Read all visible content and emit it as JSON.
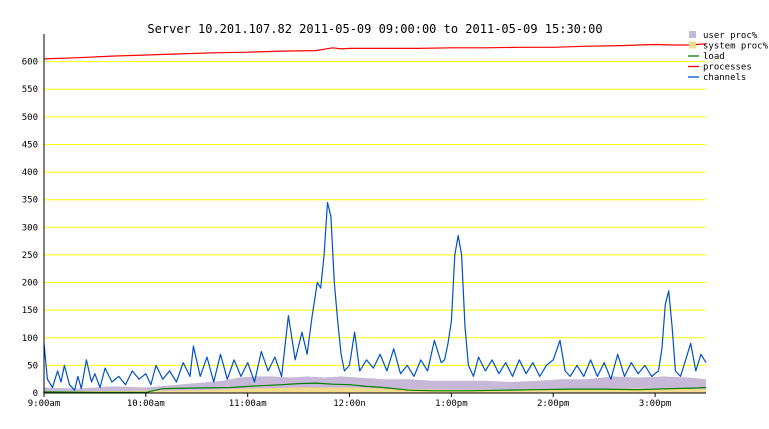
{
  "chart_data": {
    "type": "line",
    "title": "Server 10.201.107.82   2011-05-09 09:00:00 to 2011-05-09 15:30:00",
    "xlabel": "",
    "ylabel": "",
    "x_ticks": [
      {
        "label": "9:00am",
        "t": 0
      },
      {
        "label": "10:00am",
        "t": 60
      },
      {
        "label": "11:00am",
        "t": 120
      },
      {
        "label": "12:00n",
        "t": 180
      },
      {
        "label": "1:00pm",
        "t": 240
      },
      {
        "label": "2:00pm",
        "t": 300
      },
      {
        "label": "3:00pm",
        "t": 360
      }
    ],
    "xlim_minutes": [
      0,
      390
    ],
    "ylim": [
      0,
      650
    ],
    "y_ticks": [
      0,
      50,
      100,
      150,
      200,
      250,
      300,
      350,
      400,
      450,
      500,
      550,
      600
    ],
    "grid": true,
    "legend_position": "top-right",
    "series": [
      {
        "name": "user proc%",
        "style": "area",
        "color": "#c8b8d8",
        "points": [
          [
            0,
            10
          ],
          [
            20,
            8
          ],
          [
            40,
            12
          ],
          [
            60,
            10
          ],
          [
            75,
            14
          ],
          [
            90,
            18
          ],
          [
            105,
            22
          ],
          [
            115,
            28
          ],
          [
            125,
            30
          ],
          [
            135,
            30
          ],
          [
            145,
            28
          ],
          [
            155,
            30
          ],
          [
            165,
            28
          ],
          [
            175,
            30
          ],
          [
            185,
            28
          ],
          [
            200,
            25
          ],
          [
            215,
            25
          ],
          [
            230,
            22
          ],
          [
            245,
            22
          ],
          [
            260,
            22
          ],
          [
            275,
            20
          ],
          [
            290,
            22
          ],
          [
            305,
            25
          ],
          [
            320,
            25
          ],
          [
            335,
            30
          ],
          [
            350,
            28
          ],
          [
            365,
            30
          ],
          [
            380,
            28
          ],
          [
            390,
            25
          ]
        ]
      },
      {
        "name": "system proc%",
        "style": "area",
        "color": "#f5dc8c",
        "points": [
          [
            0,
            3
          ],
          [
            60,
            4
          ],
          [
            90,
            5
          ],
          [
            120,
            8
          ],
          [
            150,
            10
          ],
          [
            180,
            10
          ],
          [
            210,
            7
          ],
          [
            240,
            6
          ],
          [
            270,
            6
          ],
          [
            300,
            7
          ],
          [
            330,
            8
          ],
          [
            360,
            8
          ],
          [
            390,
            7
          ]
        ]
      },
      {
        "name": "load",
        "style": "line",
        "color": "#008000",
        "points": [
          [
            0,
            2
          ],
          [
            30,
            1
          ],
          [
            60,
            1
          ],
          [
            70,
            8
          ],
          [
            90,
            9
          ],
          [
            110,
            10
          ],
          [
            120,
            12
          ],
          [
            140,
            15
          ],
          [
            150,
            17
          ],
          [
            160,
            18
          ],
          [
            170,
            16
          ],
          [
            180,
            15
          ],
          [
            190,
            12
          ],
          [
            200,
            10
          ],
          [
            215,
            5
          ],
          [
            230,
            4
          ],
          [
            250,
            4
          ],
          [
            270,
            5
          ],
          [
            290,
            6
          ],
          [
            310,
            7
          ],
          [
            330,
            7
          ],
          [
            350,
            6
          ],
          [
            370,
            8
          ],
          [
            385,
            9
          ],
          [
            390,
            10
          ]
        ]
      },
      {
        "name": "processes",
        "style": "line",
        "color": "#ff0000",
        "points": [
          [
            0,
            605
          ],
          [
            20,
            607
          ],
          [
            40,
            610
          ],
          [
            60,
            612
          ],
          [
            80,
            614
          ],
          [
            100,
            616
          ],
          [
            120,
            617
          ],
          [
            140,
            619
          ],
          [
            160,
            620
          ],
          [
            170,
            625
          ],
          [
            175,
            623
          ],
          [
            180,
            624
          ],
          [
            200,
            624
          ],
          [
            220,
            624
          ],
          [
            240,
            625
          ],
          [
            260,
            625
          ],
          [
            280,
            626
          ],
          [
            300,
            626
          ],
          [
            320,
            628
          ],
          [
            340,
            629
          ],
          [
            360,
            631
          ],
          [
            370,
            630
          ],
          [
            380,
            630
          ],
          [
            390,
            632
          ]
        ]
      },
      {
        "name": "channels",
        "style": "line",
        "color": "#0050c8",
        "points": [
          [
            0,
            90
          ],
          [
            2,
            25
          ],
          [
            5,
            10
          ],
          [
            8,
            40
          ],
          [
            10,
            20
          ],
          [
            12,
            50
          ],
          [
            15,
            15
          ],
          [
            18,
            5
          ],
          [
            20,
            30
          ],
          [
            22,
            8
          ],
          [
            25,
            60
          ],
          [
            28,
            20
          ],
          [
            30,
            35
          ],
          [
            33,
            10
          ],
          [
            36,
            45
          ],
          [
            40,
            20
          ],
          [
            44,
            30
          ],
          [
            48,
            15
          ],
          [
            52,
            40
          ],
          [
            56,
            25
          ],
          [
            60,
            35
          ],
          [
            63,
            15
          ],
          [
            66,
            50
          ],
          [
            70,
            25
          ],
          [
            74,
            40
          ],
          [
            78,
            20
          ],
          [
            82,
            55
          ],
          [
            86,
            30
          ],
          [
            88,
            85
          ],
          [
            92,
            30
          ],
          [
            96,
            65
          ],
          [
            100,
            20
          ],
          [
            104,
            70
          ],
          [
            108,
            25
          ],
          [
            112,
            60
          ],
          [
            116,
            30
          ],
          [
            120,
            55
          ],
          [
            124,
            20
          ],
          [
            128,
            75
          ],
          [
            132,
            40
          ],
          [
            136,
            65
          ],
          [
            140,
            30
          ],
          [
            144,
            140
          ],
          [
            148,
            60
          ],
          [
            152,
            110
          ],
          [
            155,
            70
          ],
          [
            158,
            140
          ],
          [
            161,
            200
          ],
          [
            163,
            190
          ],
          [
            165,
            250
          ],
          [
            167,
            345
          ],
          [
            169,
            320
          ],
          [
            171,
            200
          ],
          [
            173,
            130
          ],
          [
            175,
            70
          ],
          [
            177,
            40
          ],
          [
            180,
            50
          ],
          [
            183,
            110
          ],
          [
            186,
            40
          ],
          [
            190,
            60
          ],
          [
            194,
            45
          ],
          [
            198,
            70
          ],
          [
            202,
            40
          ],
          [
            206,
            80
          ],
          [
            210,
            35
          ],
          [
            214,
            50
          ],
          [
            218,
            30
          ],
          [
            222,
            60
          ],
          [
            226,
            40
          ],
          [
            230,
            95
          ],
          [
            234,
            55
          ],
          [
            236,
            60
          ],
          [
            238,
            90
          ],
          [
            240,
            130
          ],
          [
            242,
            250
          ],
          [
            244,
            285
          ],
          [
            246,
            250
          ],
          [
            248,
            120
          ],
          [
            250,
            50
          ],
          [
            253,
            30
          ],
          [
            256,
            65
          ],
          [
            260,
            40
          ],
          [
            264,
            60
          ],
          [
            268,
            35
          ],
          [
            272,
            55
          ],
          [
            276,
            30
          ],
          [
            280,
            60
          ],
          [
            284,
            35
          ],
          [
            288,
            55
          ],
          [
            292,
            30
          ],
          [
            296,
            50
          ],
          [
            300,
            60
          ],
          [
            304,
            95
          ],
          [
            307,
            40
          ],
          [
            310,
            30
          ],
          [
            314,
            50
          ],
          [
            318,
            30
          ],
          [
            322,
            60
          ],
          [
            326,
            30
          ],
          [
            330,
            55
          ],
          [
            334,
            25
          ],
          [
            338,
            70
          ],
          [
            342,
            30
          ],
          [
            346,
            55
          ],
          [
            350,
            35
          ],
          [
            354,
            50
          ],
          [
            358,
            30
          ],
          [
            362,
            40
          ],
          [
            364,
            80
          ],
          [
            366,
            160
          ],
          [
            368,
            185
          ],
          [
            370,
            120
          ],
          [
            372,
            40
          ],
          [
            375,
            30
          ],
          [
            378,
            60
          ],
          [
            381,
            90
          ],
          [
            384,
            40
          ],
          [
            387,
            70
          ],
          [
            390,
            55
          ]
        ]
      }
    ]
  }
}
